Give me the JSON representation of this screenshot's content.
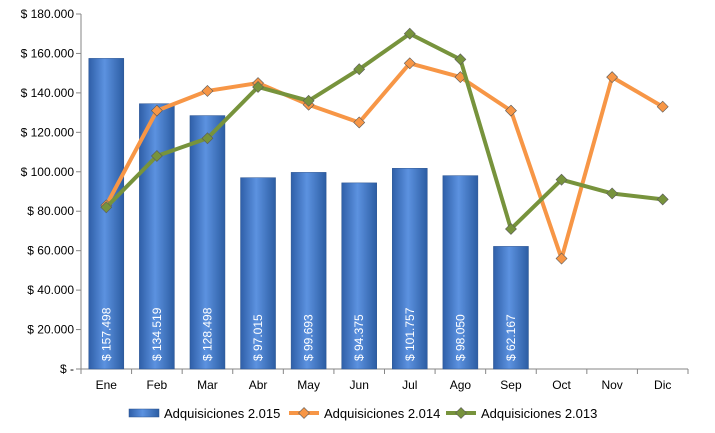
{
  "chart_data": {
    "type": "bar",
    "categories": [
      "Ene",
      "Feb",
      "Mar",
      "Abr",
      "May",
      "Jun",
      "Jul",
      "Ago",
      "Sep",
      "Oct",
      "Nov",
      "Dic"
    ],
    "ylim": [
      0,
      180000
    ],
    "yticks": [
      {
        "value": 0,
        "label": "$ -"
      },
      {
        "value": 20000,
        "label": "$ 20.000"
      },
      {
        "value": 40000,
        "label": "$ 40.000"
      },
      {
        "value": 60000,
        "label": "$ 60.000"
      },
      {
        "value": 80000,
        "label": "$ 80.000"
      },
      {
        "value": 100000,
        "label": "$ 100.000"
      },
      {
        "value": 120000,
        "label": "$ 120.000"
      },
      {
        "value": 140000,
        "label": "$ 140.000"
      },
      {
        "value": 160000,
        "label": "$ 160.000"
      },
      {
        "value": 180000,
        "label": "$ 180.000"
      }
    ],
    "grid": false,
    "legend_position": "bottom",
    "series": [
      {
        "name": "Adquisiciones 2.015",
        "type": "bar",
        "color": "#4A7FD0",
        "values": [
          157498,
          134519,
          128498,
          97015,
          99693,
          94375,
          101757,
          98050,
          62167,
          null,
          null,
          null
        ],
        "data_labels": [
          "$ 157.498",
          "$ 134.519",
          "$ 128.498",
          "$ 97.015",
          "$ 99.693",
          "$ 94.375",
          "$ 101.757",
          "$ 98.050",
          "$ 62.167",
          null,
          null,
          null
        ]
      },
      {
        "name": "Adquisiciones 2.014",
        "type": "line",
        "color": "#F79646",
        "values": [
          83000,
          131000,
          141000,
          145000,
          134000,
          125000,
          155000,
          148000,
          131000,
          56000,
          148000,
          133000
        ]
      },
      {
        "name": "Adquisiciones 2.013",
        "type": "line",
        "color": "#77933C",
        "values": [
          82000,
          108000,
          117000,
          143000,
          136000,
          152000,
          170000,
          157000,
          71000,
          96000,
          89000,
          86000
        ]
      }
    ]
  }
}
